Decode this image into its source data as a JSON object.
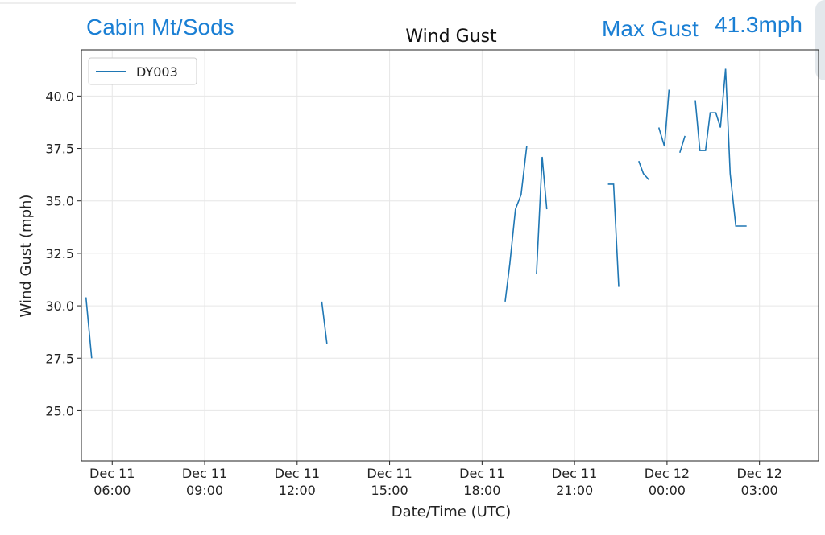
{
  "header": {
    "station": "Cabin Mt/Sods",
    "max_label": "Max Gust",
    "max_value": "41.3mph"
  },
  "chart_data": {
    "type": "line",
    "title": "Wind Gust",
    "x_label": "Date/Time (UTC)",
    "y_label": "Wind Gust (mph)",
    "x": [
      "Dec 11 05:09",
      "Dec 11 05:20",
      null,
      "Dec 11 12:48",
      "Dec 11 12:58",
      null,
      "Dec 11 18:45",
      "Dec 11 18:54",
      "Dec 11 19:05",
      "Dec 11 19:16",
      "Dec 11 19:27",
      null,
      "Dec 11 19:46",
      "Dec 11 19:57",
      "Dec 11 20:06",
      null,
      "Dec 11 22:05",
      "Dec 11 22:16",
      "Dec 11 22:26",
      null,
      "Dec 11 23:05",
      "Dec 11 23:14",
      "Dec 11 23:25",
      null,
      "Dec 11 23:44",
      "Dec 11 23:55",
      "Dec 12 00:04",
      null,
      "Dec 12 00:25",
      "Dec 12 00:35",
      null,
      "Dec 12 00:55",
      "Dec 12 01:04",
      "Dec 12 01:15",
      "Dec 12 01:24",
      "Dec 12 01:35",
      "Dec 12 01:44",
      "Dec 12 01:54",
      "Dec 12 02:03",
      "Dec 12 02:14",
      "Dec 12 02:35"
    ],
    "series": [
      {
        "name": "DY003",
        "color": "#1f77b4",
        "values": [
          30.4,
          27.5,
          null,
          30.2,
          28.2,
          null,
          30.2,
          32.0,
          34.6,
          35.3,
          37.6,
          null,
          31.5,
          37.1,
          34.6,
          null,
          35.8,
          35.8,
          30.9,
          null,
          36.9,
          36.3,
          36.0,
          null,
          38.5,
          37.6,
          40.3,
          null,
          37.3,
          38.1,
          null,
          39.8,
          37.4,
          37.4,
          39.2,
          39.2,
          38.5,
          41.3,
          36.3,
          33.8,
          33.8
        ]
      }
    ],
    "xlim": [
      "Dec 11 05:00",
      "Dec 12 04:55"
    ],
    "xticks": [
      "Dec 11 06:00",
      "Dec 11 09:00",
      "Dec 11 12:00",
      "Dec 11 15:00",
      "Dec 11 18:00",
      "Dec 11 21:00",
      "Dec 12 00:00",
      "Dec 12 03:00"
    ],
    "ylim": [
      22.6,
      42.2
    ],
    "yticks": [
      {
        "value": 25,
        "label": "25.0"
      },
      {
        "value": 27.5,
        "label": "27.5"
      },
      {
        "value": 30,
        "label": "30.0"
      },
      {
        "value": 32.5,
        "label": "32.5"
      },
      {
        "value": 35,
        "label": "35.0"
      },
      {
        "value": 37.5,
        "label": "37.5"
      },
      {
        "value": 40,
        "label": "40.0"
      }
    ],
    "grid": true,
    "legend": "upper left"
  }
}
